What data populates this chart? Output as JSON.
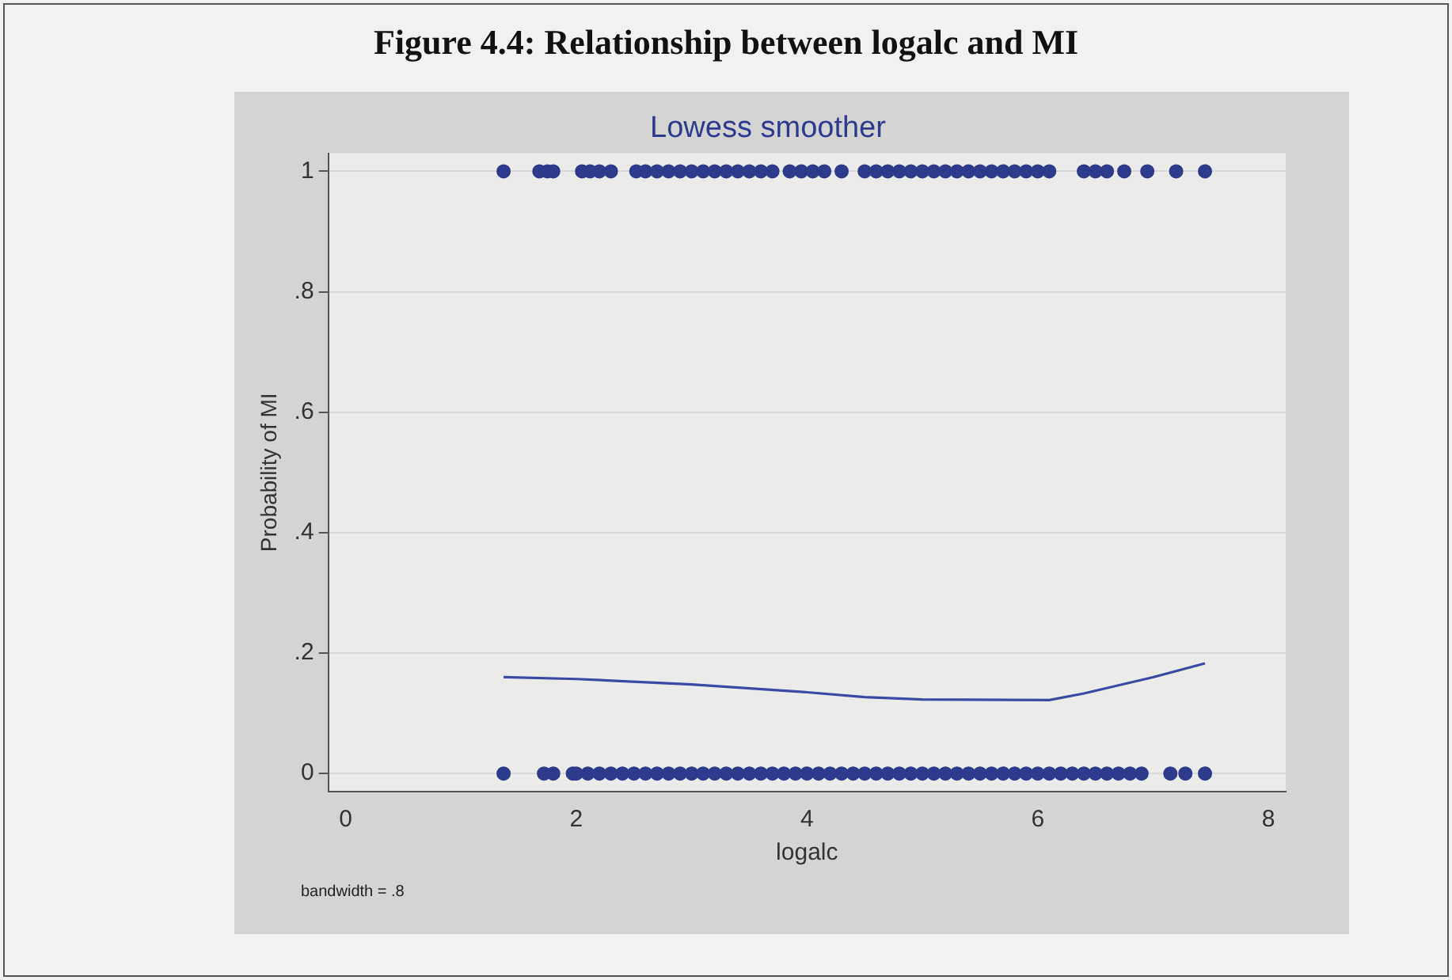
{
  "chart_data": {
    "type": "scatter",
    "title": "Figure 4.4: Relationship between logalc and MI",
    "subtitle": "Lowess smoother",
    "xlabel": "logalc",
    "ylabel": "Probability of MI",
    "annotations": [
      "bandwidth = .8"
    ],
    "xlim": [
      -0.15,
      8.15
    ],
    "xticks": [
      0,
      2,
      4,
      6,
      8
    ],
    "ylim": [
      -0.03,
      1.03
    ],
    "yticks": [
      0,
      {
        "value": 0.2,
        "label": ".2"
      },
      {
        "value": 0.4,
        "label": ".4"
      },
      {
        "value": 0.6,
        "label": ".6"
      },
      {
        "value": 0.8,
        "label": ".8"
      },
      1
    ],
    "grid": "y",
    "legend": false,
    "series": [
      {
        "marker": "circle",
        "color": "#2e3a8c",
        "x": [
          1.37,
          1.68,
          1.75,
          1.8,
          2.05,
          2.12,
          2.2,
          2.3,
          2.52,
          2.6,
          2.7,
          2.8,
          2.9,
          3.0,
          3.1,
          3.2,
          3.3,
          3.4,
          3.5,
          3.6,
          3.7,
          3.85,
          3.95,
          4.05,
          4.15,
          4.3,
          4.5,
          4.6,
          4.7,
          4.8,
          4.9,
          5.0,
          5.1,
          5.2,
          5.3,
          5.4,
          5.5,
          5.6,
          5.7,
          5.8,
          5.9,
          6.0,
          6.1,
          6.4,
          6.5,
          6.6,
          6.75,
          6.95,
          7.2,
          7.45,
          1.37,
          1.72,
          1.8,
          1.97,
          2.0,
          2.1,
          2.2,
          2.3,
          2.4,
          2.5,
          2.6,
          2.7,
          2.8,
          2.9,
          3.0,
          3.1,
          3.2,
          3.3,
          3.4,
          3.5,
          3.6,
          3.7,
          3.8,
          3.9,
          4.0,
          4.1,
          4.2,
          4.3,
          4.4,
          4.5,
          4.6,
          4.7,
          4.8,
          4.9,
          5.0,
          5.1,
          5.2,
          5.3,
          5.4,
          5.5,
          5.6,
          5.7,
          5.8,
          5.9,
          6.0,
          6.1,
          6.2,
          6.3,
          6.4,
          6.5,
          6.6,
          6.7,
          6.8,
          6.9,
          7.15,
          7.28,
          7.45
        ],
        "values": [
          1,
          1,
          1,
          1,
          1,
          1,
          1,
          1,
          1,
          1,
          1,
          1,
          1,
          1,
          1,
          1,
          1,
          1,
          1,
          1,
          1,
          1,
          1,
          1,
          1,
          1,
          1,
          1,
          1,
          1,
          1,
          1,
          1,
          1,
          1,
          1,
          1,
          1,
          1,
          1,
          1,
          1,
          1,
          1,
          1,
          1,
          1,
          1,
          1,
          1,
          0,
          0,
          0,
          0,
          0,
          0,
          0,
          0,
          0,
          0,
          0,
          0,
          0,
          0,
          0,
          0,
          0,
          0,
          0,
          0,
          0,
          0,
          0,
          0,
          0,
          0,
          0,
          0,
          0,
          0,
          0,
          0,
          0,
          0,
          0,
          0,
          0,
          0,
          0,
          0,
          0,
          0,
          0,
          0,
          0,
          0,
          0,
          0,
          0,
          0,
          0,
          0,
          0,
          0,
          0,
          0,
          0
        ]
      },
      {
        "type": "line",
        "color": "#3b4aa0",
        "x": [
          1.37,
          2.0,
          3.0,
          4.0,
          4.5,
          5.0,
          6.1,
          6.4,
          7.0,
          7.45
        ],
        "values": [
          0.16,
          0.157,
          0.148,
          0.135,
          0.127,
          0.123,
          0.122,
          0.133,
          0.16,
          0.183
        ]
      }
    ]
  }
}
